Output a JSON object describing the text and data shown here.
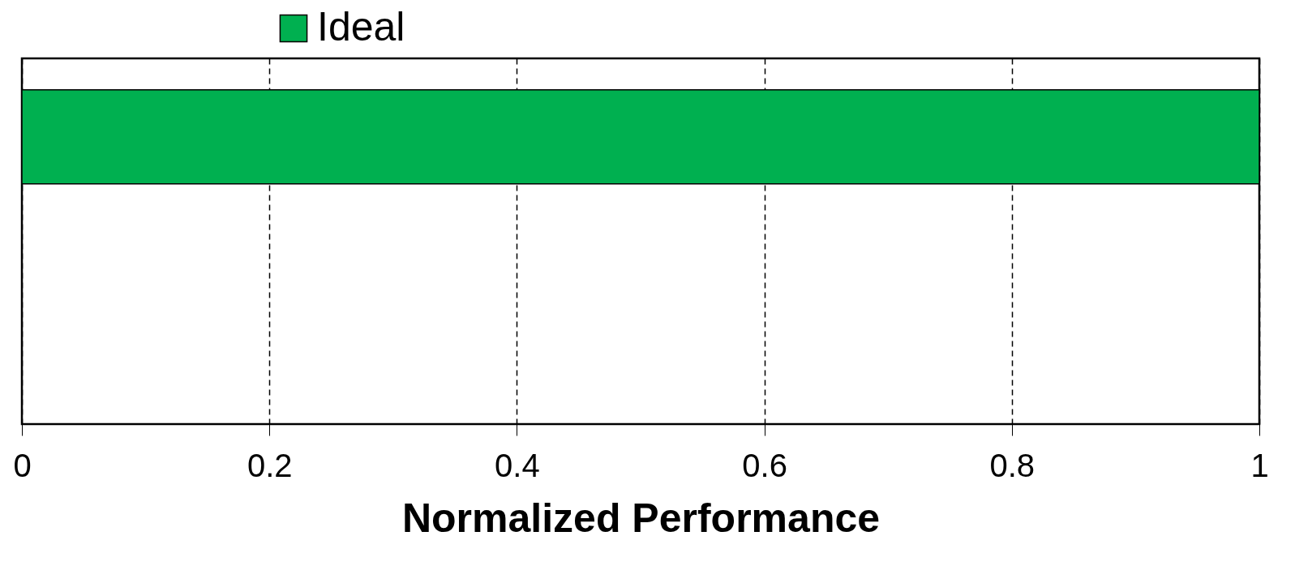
{
  "chart_data": {
    "type": "bar",
    "orientation": "horizontal",
    "categories": [
      null,
      null
    ],
    "series": [
      {
        "name": "Ideal",
        "color": "#00b050",
        "values": [
          1,
          null
        ]
      }
    ],
    "xlabel": "Normalized Performance",
    "xlim": [
      0,
      1
    ],
    "xticks": [
      0,
      0.2,
      0.4,
      0.6,
      0.8,
      1
    ],
    "grid": "x",
    "legend": "top"
  }
}
